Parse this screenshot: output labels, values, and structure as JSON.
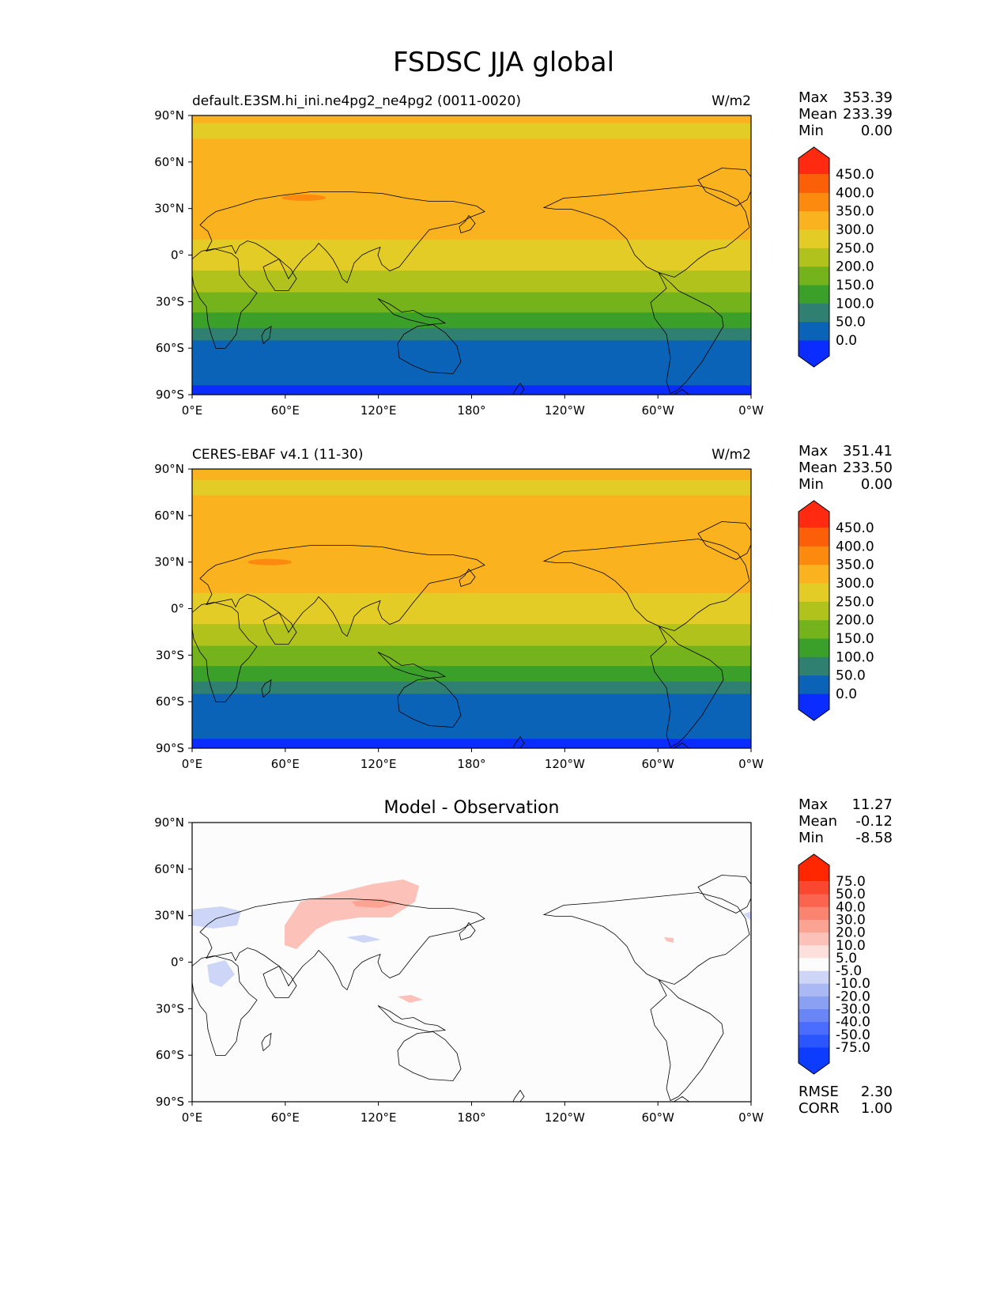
{
  "figure": {
    "title": "FSDSC JJA global"
  },
  "colors": {
    "abs_bounds": [
      -1000,
      0,
      50,
      100,
      150,
      200,
      250,
      300,
      350,
      400,
      450,
      1000
    ],
    "abs": [
      "#0a2cff",
      "#0a63b6",
      "#2f8070",
      "#3aa029",
      "#75b31d",
      "#b1c21c",
      "#e4cc26",
      "#fbb21f",
      "#fb8a0e",
      "#fb6009",
      "#ff2a0f"
    ],
    "diff_bounds": [
      -1000,
      -75,
      -50,
      -40,
      -30,
      -20,
      -10,
      -5,
      5,
      10,
      20,
      30,
      40,
      50,
      75,
      1000
    ],
    "diff": [
      "#0d3cff",
      "#2b55ff",
      "#4a6cff",
      "#6985f6",
      "#8aa0f3",
      "#aab9f3",
      "#cdd6f7",
      "#fcfcfc",
      "#fde0dc",
      "#fcc1b8",
      "#fca493",
      "#fb8471",
      "#fb654f",
      "#fa4730",
      "#ff2600"
    ],
    "coastline": "#000000"
  },
  "panels": [
    {
      "kind": "abs",
      "left_title": "default.E3SM.hi_ini.ne4pg2_ne4pg2 (0011-0020)",
      "center_title": "",
      "units": "W/m2",
      "stats": [
        {
          "label": "Max",
          "value": "353.39"
        },
        {
          "label": "Mean",
          "value": "233.39"
        },
        {
          "label": "Min",
          "value": "0.00"
        }
      ],
      "ticks": [
        "450.0",
        "400.0",
        "350.0",
        "300.0",
        "250.0",
        "200.0",
        "150.0",
        "100.0",
        "50.0",
        "0.0"
      ],
      "footer": [],
      "field": {
        "band_edges_lat": [
          90,
          85,
          75,
          57,
          10,
          -10,
          -24,
          -37,
          -47,
          -55,
          -84,
          -90
        ],
        "band_values": [
          325,
          275,
          325,
          325,
          275,
          225,
          175,
          125,
          75,
          25,
          -10
        ],
        "patches": [
          {
            "lon": 72,
            "lat": 37,
            "value": 375
          }
        ]
      }
    },
    {
      "kind": "abs",
      "left_title": "CERES-EBAF v4.1 (11-30)",
      "center_title": "",
      "units": "W/m2",
      "stats": [
        {
          "label": "Max",
          "value": "351.41"
        },
        {
          "label": "Mean",
          "value": "233.50"
        },
        {
          "label": "Min",
          "value": "0.00"
        }
      ],
      "ticks": [
        "450.0",
        "400.0",
        "350.0",
        "300.0",
        "250.0",
        "200.0",
        "150.0",
        "100.0",
        "50.0",
        "0.0"
      ],
      "footer": [],
      "field": {
        "band_edges_lat": [
          90,
          83,
          73,
          57,
          10,
          -10,
          -24,
          -37,
          -47,
          -55,
          -84,
          -90
        ],
        "band_values": [
          325,
          275,
          325,
          325,
          275,
          225,
          175,
          125,
          75,
          25,
          -10
        ],
        "patches": [
          {
            "lon": 50,
            "lat": 30,
            "value": 375
          }
        ]
      }
    },
    {
      "kind": "diff",
      "left_title": "",
      "center_title": "Model - Observation",
      "units": "",
      "stats": [
        {
          "label": "Max",
          "value": "11.27"
        },
        {
          "label": "Mean",
          "value": "-0.12"
        },
        {
          "label": "Min",
          "value": "-8.58"
        }
      ],
      "ticks": [
        "75.0",
        "50.0",
        "40.0",
        "30.0",
        "20.0",
        "10.0",
        "5.0",
        "-5.0",
        "-10.0",
        "-20.0",
        "-30.0",
        "-40.0",
        "-50.0",
        "-75.0"
      ],
      "footer": [
        {
          "label": "RMSE",
          "value": "2.30"
        },
        {
          "label": "CORR",
          "value": "1.00"
        }
      ],
      "field": {
        "band_edges_lat": [
          90,
          -90
        ],
        "band_values": [
          0
        ],
        "patches": []
      }
    }
  ],
  "axes": {
    "x_ticks": [
      "0°E",
      "60°E",
      "120°E",
      "180°",
      "120°W",
      "60°W",
      "0°W"
    ],
    "y_ticks": [
      "90°N",
      "60°N",
      "30°N",
      "0°",
      "30°S",
      "60°S",
      "90°S"
    ]
  }
}
